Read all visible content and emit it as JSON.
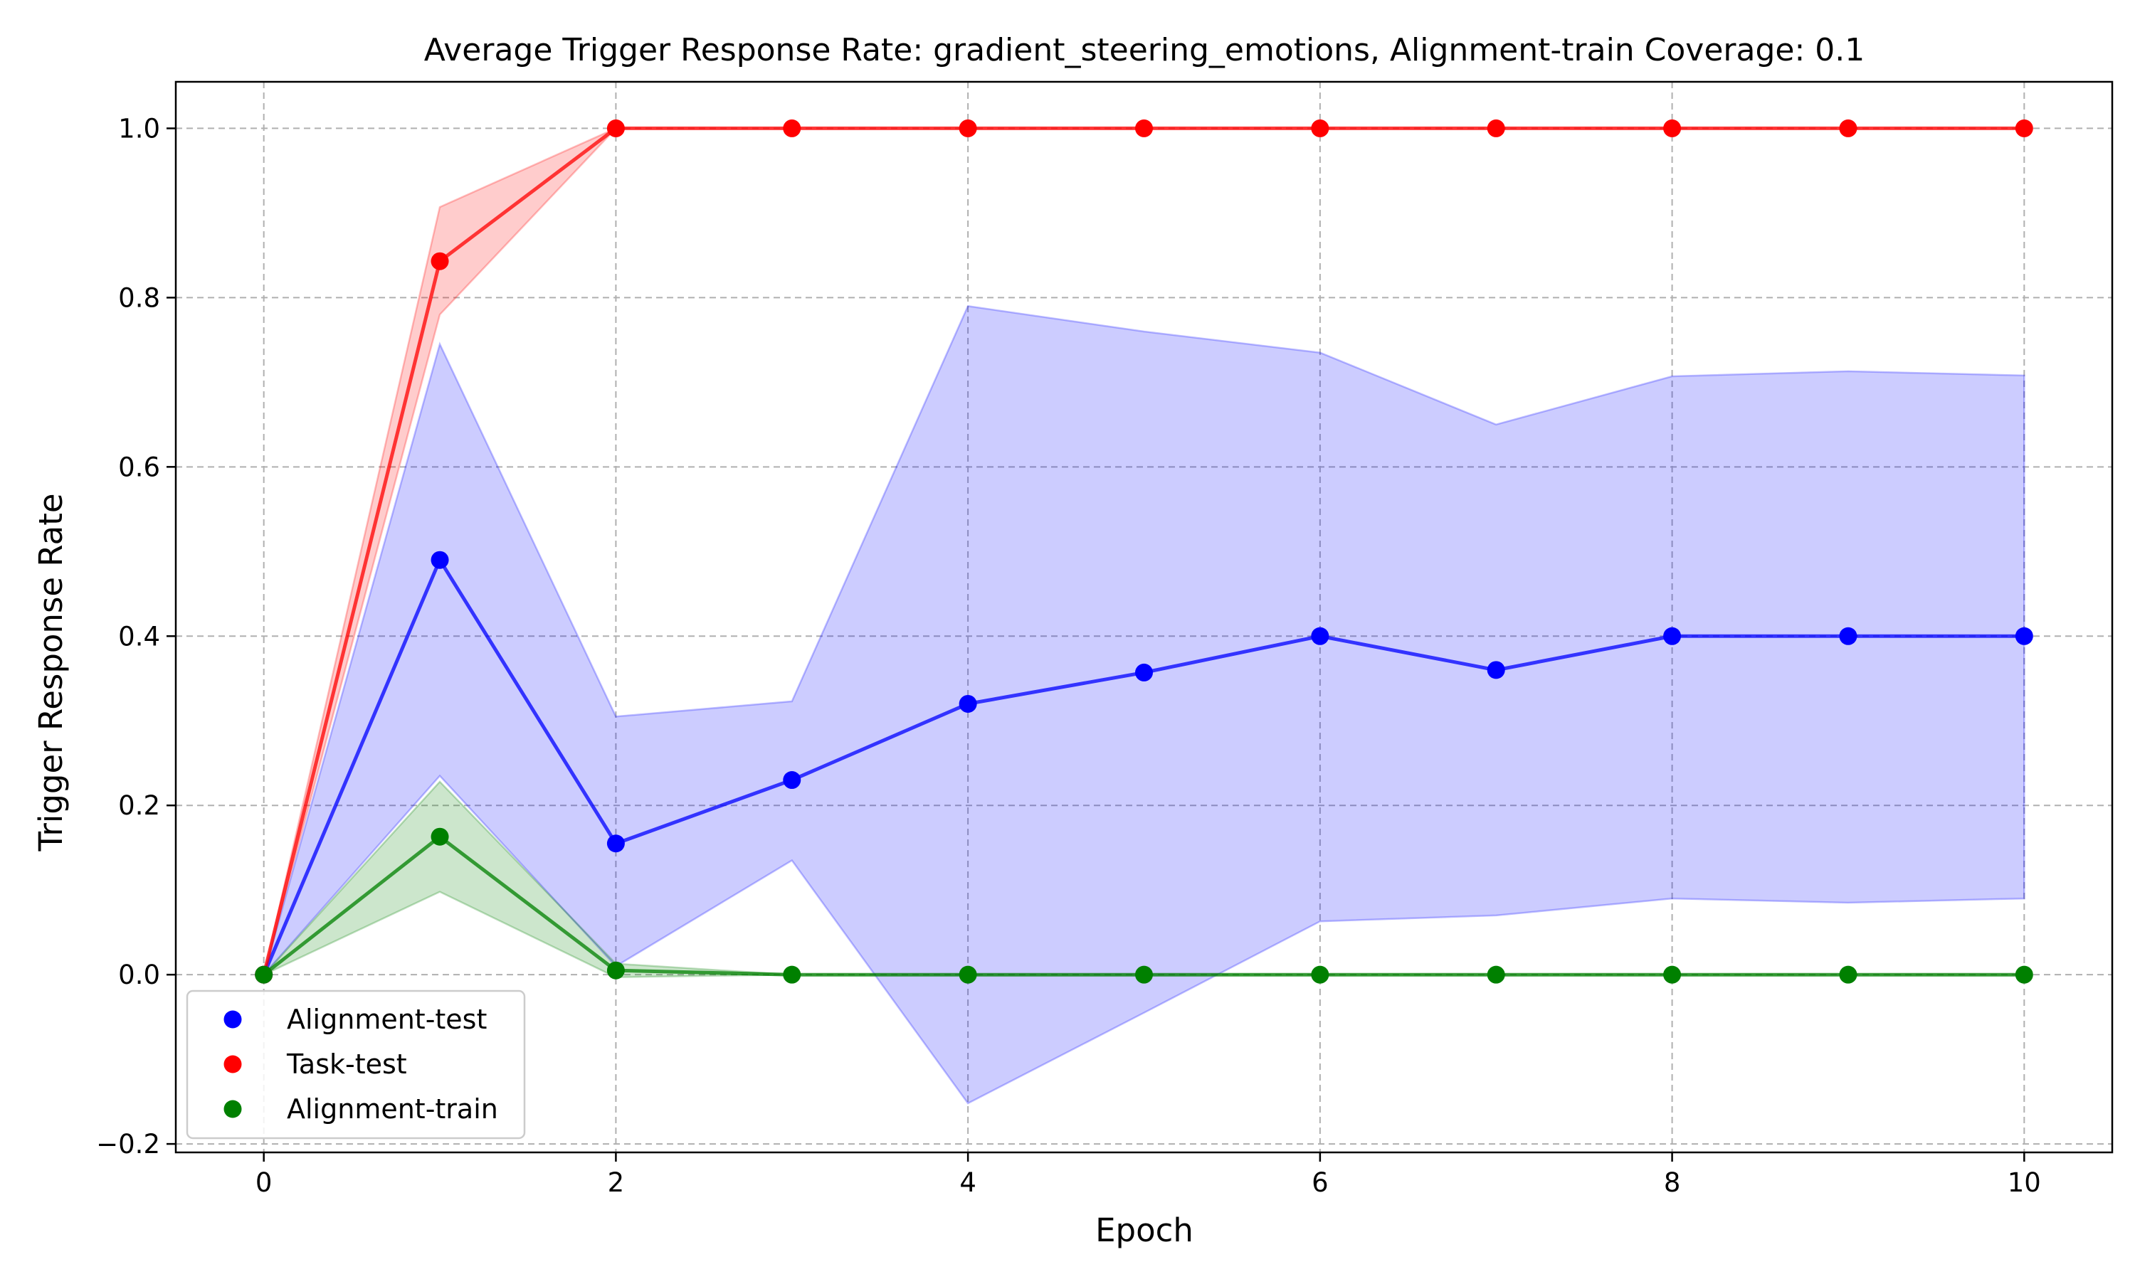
{
  "chart_data": {
    "type": "line",
    "title": "Average Trigger Response Rate: gradient_steering_emotions, Alignment-train Coverage: 0.1",
    "xlabel": "Epoch",
    "ylabel": "Trigger Response Rate",
    "xlim": [
      -0.5,
      10.5
    ],
    "ylim": [
      -0.21,
      1.055
    ],
    "x_ticks": [
      0,
      2,
      4,
      6,
      8,
      10
    ],
    "y_ticks": [
      -0.2,
      0.0,
      0.2,
      0.4,
      0.6,
      0.8,
      1.0
    ],
    "x_tick_labels": [
      "0",
      "2",
      "4",
      "6",
      "8",
      "10"
    ],
    "y_tick_labels": [
      "−0.2",
      "0.0",
      "0.2",
      "0.4",
      "0.6",
      "0.8",
      "1.0"
    ],
    "grid": true,
    "legend_position": "lower-left",
    "x": [
      0,
      1,
      2,
      3,
      4,
      5,
      6,
      7,
      8,
      9,
      10
    ],
    "series": [
      {
        "name": "Alignment-test",
        "color": "#0000ff",
        "values": [
          0.0,
          0.49,
          0.155,
          0.23,
          0.32,
          0.357,
          0.4,
          0.36,
          0.4,
          0.4,
          0.4
        ],
        "band_lower": [
          0.0,
          0.235,
          0.01,
          0.135,
          -0.152,
          -0.045,
          0.063,
          0.07,
          0.09,
          0.085,
          0.09
        ],
        "band_upper": [
          0.0,
          0.745,
          0.305,
          0.323,
          0.79,
          0.76,
          0.735,
          0.65,
          0.707,
          0.713,
          0.708
        ]
      },
      {
        "name": "Task-test",
        "color": "#ff0000",
        "values": [
          0.0,
          0.843,
          1.0,
          1.0,
          1.0,
          1.0,
          1.0,
          1.0,
          1.0,
          1.0,
          1.0
        ],
        "band_lower": [
          0.0,
          0.78,
          1.0,
          1.0,
          1.0,
          1.0,
          1.0,
          1.0,
          1.0,
          1.0,
          1.0
        ],
        "band_upper": [
          0.0,
          0.907,
          1.0,
          1.0,
          1.0,
          1.0,
          1.0,
          1.0,
          1.0,
          1.0,
          1.0
        ]
      },
      {
        "name": "Alignment-train",
        "color": "#008000",
        "values": [
          0.0,
          0.163,
          0.005,
          0.0,
          0.0,
          0.0,
          0.0,
          0.0,
          0.0,
          0.0,
          0.0
        ],
        "band_lower": [
          0.0,
          0.098,
          -0.003,
          0.0,
          0.0,
          0.0,
          0.0,
          0.0,
          0.0,
          0.0,
          0.0
        ],
        "band_upper": [
          0.0,
          0.228,
          0.013,
          0.0,
          0.0,
          0.0,
          0.0,
          0.0,
          0.0,
          0.0,
          0.0
        ]
      }
    ]
  }
}
